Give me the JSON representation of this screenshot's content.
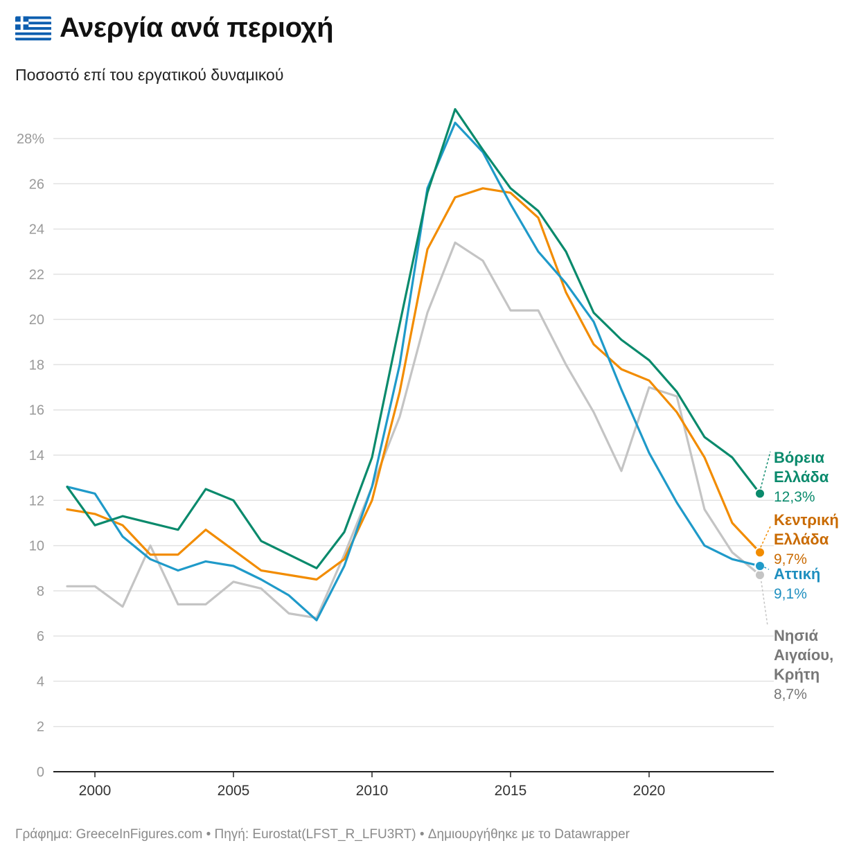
{
  "title": "Ανεργία ανά περιοχή",
  "subtitle": "Ποσοστό επί του εργατικού δυναμικού",
  "footer": "Γράφημα: GreeceInFigures.com • Πηγή: Eurostat(LFST_R_LFU3RT) • Δημιουργήθηκε με το Datawrapper",
  "flag_icon": "greek-flag-icon",
  "chart_data": {
    "type": "line",
    "title": "Ανεργία ανά περιοχή",
    "subtitle": "Ποσοστό επί του εργατικού δυναμικού",
    "x": [
      1999,
      2000,
      2001,
      2002,
      2003,
      2004,
      2005,
      2006,
      2007,
      2008,
      2009,
      2010,
      2011,
      2012,
      2013,
      2014,
      2015,
      2016,
      2017,
      2018,
      2019,
      2020,
      2021,
      2022,
      2023,
      2024
    ],
    "xticks": [
      2000,
      2005,
      2010,
      2015,
      2020
    ],
    "xtick_labels": [
      "2000",
      "2005",
      "2010",
      "2015",
      "2020"
    ],
    "xlim": [
      1998.5,
      2024.5
    ],
    "ylim": [
      0,
      28
    ],
    "yticks": [
      0,
      2,
      4,
      6,
      8,
      10,
      12,
      14,
      16,
      18,
      20,
      22,
      24,
      26,
      28
    ],
    "ytick_labels": [
      "0",
      "2",
      "4",
      "6",
      "8",
      "10",
      "12",
      "14",
      "16",
      "18",
      "20",
      "22",
      "24",
      "26",
      "28%"
    ],
    "grid": true,
    "legend": "direct labels at line ends",
    "series": [
      {
        "name": "Νησιά Αιγαίου, Κρήτη",
        "label_lines": [
          "Νησιά",
          "Αιγαίου,",
          "Κρήτη"
        ],
        "value_label": "8,7%",
        "color": "#c4c4c4",
        "label_color": "#777777",
        "values": [
          8.2,
          8.2,
          7.3,
          10.0,
          7.4,
          7.4,
          8.4,
          8.1,
          7.0,
          6.8,
          9.6,
          12.6,
          15.7,
          20.3,
          23.4,
          22.6,
          20.4,
          20.4,
          18.0,
          15.9,
          13.3,
          17.0,
          16.6,
          11.6,
          9.7,
          8.7
        ]
      },
      {
        "name": "Κεντρική Ελλάδα",
        "label_lines": [
          "Κεντρική",
          "Ελλάδα"
        ],
        "value_label": "9,7%",
        "color": "#f28c00",
        "label_color": "#c96a00",
        "values": [
          11.6,
          11.4,
          10.9,
          9.6,
          9.6,
          10.7,
          9.8,
          8.9,
          8.7,
          8.5,
          9.4,
          12.0,
          16.8,
          23.1,
          25.4,
          25.8,
          25.6,
          24.5,
          21.2,
          18.9,
          17.8,
          17.3,
          15.9,
          13.9,
          11.0,
          9.7
        ]
      },
      {
        "name": "Αττική",
        "label_lines": [
          "Αττική"
        ],
        "value_label": "9,1%",
        "color": "#1f9ac9",
        "label_color": "#1f8fbf",
        "values": [
          12.6,
          12.3,
          10.4,
          9.4,
          8.9,
          9.3,
          9.1,
          8.5,
          7.8,
          6.7,
          9.1,
          12.6,
          18.0,
          25.8,
          28.7,
          27.4,
          25.1,
          23.0,
          21.6,
          19.9,
          16.9,
          14.1,
          11.9,
          10.0,
          9.4,
          9.1
        ]
      },
      {
        "name": "Βόρεια Ελλάδα",
        "label_lines": [
          "Βόρεια",
          "Ελλάδα"
        ],
        "value_label": "12,3%",
        "color": "#0a8a6c",
        "label_color": "#0a8a6c",
        "values": [
          12.6,
          10.9,
          11.3,
          11.0,
          10.7,
          12.5,
          12.0,
          10.2,
          9.6,
          9.0,
          10.6,
          13.9,
          19.8,
          25.6,
          29.3,
          27.5,
          25.8,
          24.8,
          23.0,
          20.3,
          19.1,
          18.2,
          16.8,
          14.8,
          13.9,
          12.3
        ]
      }
    ]
  }
}
